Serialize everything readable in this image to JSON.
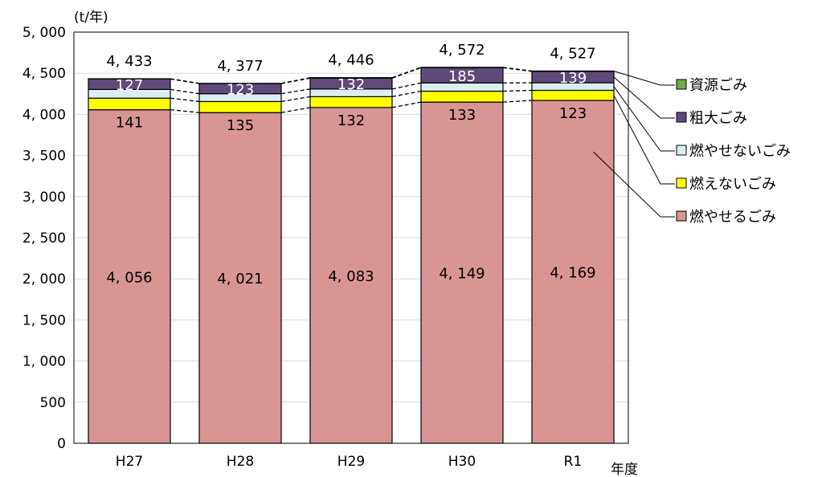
{
  "chart_data": {
    "type": "bar",
    "stacked": true,
    "unit_label": "(t/年)",
    "xlabel": "年度",
    "categories": [
      "H27",
      "H28",
      "H29",
      "H30",
      "R1"
    ],
    "ylim": [
      0,
      5000
    ],
    "yticks": [
      0,
      500,
      1000,
      1500,
      2000,
      2500,
      3000,
      3500,
      4000,
      4500,
      5000
    ],
    "ytick_labels": [
      "0",
      "500",
      "1, 000",
      "1, 500",
      "2, 000",
      "2, 500",
      "3, 000",
      "3, 500",
      "4, 000",
      "4, 500",
      "5, 000"
    ],
    "grid": true,
    "legend_position": "right",
    "series": [
      {
        "name": "燃やせるごみ",
        "color": "#d99594",
        "values": [
          4056,
          4021,
          4083,
          4149,
          4169
        ],
        "labels": [
          "4, 056",
          "4, 021",
          "4, 083",
          "4, 149",
          "4, 169"
        ]
      },
      {
        "name": "燃えないごみ",
        "color": "#ffff00",
        "values": [
          141,
          135,
          132,
          133,
          123
        ],
        "labels": [
          "141",
          "135",
          "132",
          "133",
          "123"
        ]
      },
      {
        "name": "燃やせないごみ",
        "color": "#dbeef3",
        "values": [
          106,
          95,
          93,
          100,
          92
        ],
        "labels": []
      },
      {
        "name": "粗大ごみ",
        "color": "#604a7b",
        "values": [
          127,
          123,
          132,
          185,
          139
        ],
        "labels": [
          "127",
          "123",
          "132",
          "185",
          "139"
        ]
      },
      {
        "name": "資源ごみ",
        "color": "#70ad47",
        "values": [
          3,
          3,
          6,
          5,
          4
        ],
        "labels": []
      }
    ],
    "totals": [
      4433,
      4377,
      4446,
      4572,
      4527
    ],
    "total_labels": [
      "4, 433",
      "4, 377",
      "4, 446",
      "4, 572",
      "4, 527"
    ]
  }
}
